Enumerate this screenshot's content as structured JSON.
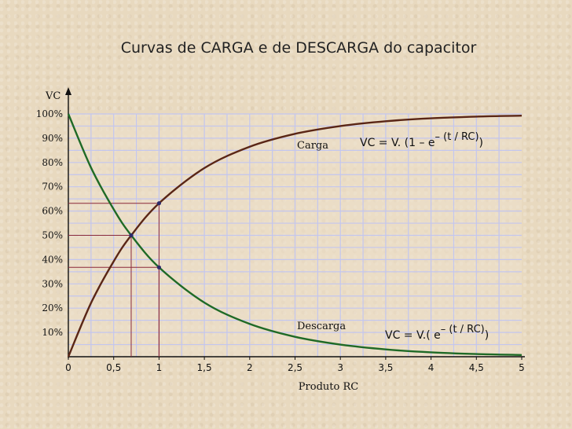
{
  "slide": {
    "title": "Curvas de CARGA e de DESCARGA do capacitor"
  },
  "chart_data": {
    "type": "line",
    "title": "Curvas de CARGA e de DESCARGA do capacitor",
    "xlabel": "Produto RC",
    "ylabel": "VC",
    "xlim": [
      0,
      5
    ],
    "ylim": [
      0,
      100
    ],
    "x_ticks": [
      "0",
      "0,5",
      "1",
      "1,5",
      "2",
      "2,5",
      "3",
      "3,5",
      "4",
      "4,5",
      "5"
    ],
    "y_ticks": [
      "10%",
      "20%",
      "30%",
      "40%",
      "50%",
      "60%",
      "70%",
      "80%",
      "90%",
      "100%"
    ],
    "grid": true,
    "series": [
      {
        "name": "Carga",
        "color": "#5a2616",
        "equation": "VC = V.(1 – e^-(t/RC))",
        "eq_main": "VC = V. (1 – e",
        "eq_exp": "– (t / RC)",
        "eq_tail": ")",
        "x": [
          0,
          0.25,
          0.5,
          0.693,
          1,
          1.5,
          2,
          2.5,
          3,
          3.5,
          4,
          4.5,
          5
        ],
        "y": [
          0,
          22.1,
          39.3,
          50,
          63.2,
          77.7,
          86.5,
          91.8,
          95.0,
          97.0,
          98.2,
          98.9,
          99.3
        ]
      },
      {
        "name": "Descarga",
        "color": "#1f6a26",
        "equation": "VC = V.(e^-(t/RC))",
        "eq_main": "VC = V.( e",
        "eq_exp": "– (t / RC)",
        "eq_tail": ")",
        "x": [
          0,
          0.25,
          0.5,
          0.693,
          1,
          1.5,
          2,
          2.5,
          3,
          3.5,
          4,
          4.5,
          5
        ],
        "y": [
          100,
          77.9,
          60.7,
          50,
          36.8,
          22.3,
          13.5,
          8.2,
          5.0,
          3.0,
          1.8,
          1.1,
          0.7
        ]
      }
    ],
    "annotations": [
      {
        "x": 0.693,
        "y": 50
      },
      {
        "x": 1,
        "y": 63.2
      },
      {
        "x": 1,
        "y": 36.8
      }
    ]
  }
}
